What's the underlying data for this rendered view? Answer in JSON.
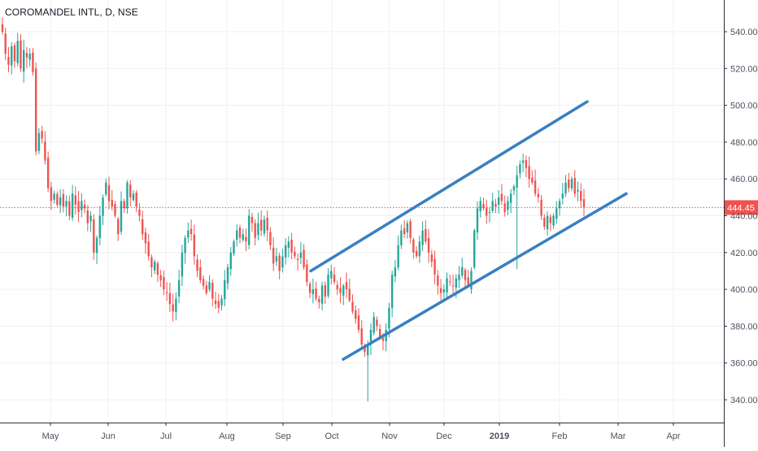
{
  "header": {
    "title": "COROMANDEL INTL, D, NSE"
  },
  "colors": {
    "up": "#26a69a",
    "down": "#ef5350",
    "channel": "#3a7fc1",
    "last_price": "#ef5350",
    "grid": "#eef0f3",
    "axis_text": "#4c525e"
  },
  "chart_data": {
    "type": "candlestick",
    "title": "COROMANDEL INTL, D, NSE",
    "symbol": "COROMANDEL INTL",
    "interval": "D",
    "exchange": "NSE",
    "grid": true,
    "y_axis": {
      "position": "right",
      "ticks": [
        "540.00",
        "520.00",
        "500.00",
        "480.00",
        "460.00",
        "440.00",
        "420.00",
        "400.00",
        "380.00",
        "360.00",
        "340.00"
      ],
      "tick_values": [
        540,
        520,
        500,
        480,
        460,
        440,
        420,
        400,
        380,
        360,
        340
      ],
      "range": [
        330,
        550
      ]
    },
    "x_axis": {
      "labels": [
        "May",
        "Jun",
        "Jul",
        "Aug",
        "Sep",
        "Oct",
        "Nov",
        "Dec",
        "2019",
        "Feb",
        "Mar",
        "Apr"
      ],
      "bold_labels": [
        "2019"
      ]
    },
    "last_price": {
      "value": 444.45,
      "label": "444.45"
    },
    "closes": [
      540,
      528,
      522,
      532,
      524,
      535,
      520,
      530,
      526,
      528,
      518,
      475,
      485,
      482,
      470,
      455,
      448,
      452,
      446,
      450,
      445,
      448,
      440,
      452,
      446,
      442,
      448,
      444,
      436,
      440,
      420,
      428,
      440,
      450,
      458,
      448,
      445,
      440,
      430,
      448,
      444,
      458,
      450,
      452,
      445,
      440,
      430,
      425,
      418,
      412,
      415,
      408,
      405,
      400,
      398,
      392,
      388,
      395,
      405,
      420,
      428,
      432,
      430,
      418,
      410,
      405,
      402,
      398,
      404,
      395,
      392,
      390,
      395,
      405,
      412,
      420,
      426,
      432,
      428,
      430,
      426,
      440,
      436,
      428,
      436,
      432,
      438,
      432,
      424,
      414,
      418,
      410,
      418,
      424,
      426,
      420,
      418,
      416,
      420,
      412,
      404,
      398,
      400,
      395,
      393,
      402,
      396,
      408,
      410,
      404,
      400,
      398,
      402,
      400,
      394,
      388,
      384,
      378,
      370,
      366,
      370,
      378,
      385,
      380,
      374,
      372,
      378,
      390,
      408,
      412,
      424,
      432,
      430,
      436,
      428,
      420,
      418,
      426,
      432,
      426,
      420,
      415,
      408,
      402,
      398,
      400,
      406,
      404,
      402,
      406,
      408,
      412,
      405,
      402,
      410,
      432,
      444,
      448,
      444,
      440,
      442,
      448,
      445,
      450,
      448,
      442,
      448,
      452,
      456,
      462,
      468,
      470,
      466,
      460,
      458,
      452,
      450,
      440,
      434,
      440,
      436,
      440,
      444,
      448,
      452,
      458,
      455,
      460,
      452,
      454,
      448,
      444.45
    ],
    "ohlc_note": "daily candles, values in INR",
    "channel_lines": [
      {
        "name": "upper",
        "from": {
          "x_label": "Sep",
          "price": 410
        },
        "to": {
          "x_label": "Mar",
          "price": 502
        }
      },
      {
        "name": "lower",
        "from": {
          "x_label": "Oct",
          "price": 362
        },
        "to": {
          "x_label": "Mar",
          "price": 452
        }
      }
    ],
    "notable_lows": [
      {
        "near": "Oct",
        "price": 339
      },
      {
        "near": "Feb",
        "price": 411
      }
    ]
  }
}
